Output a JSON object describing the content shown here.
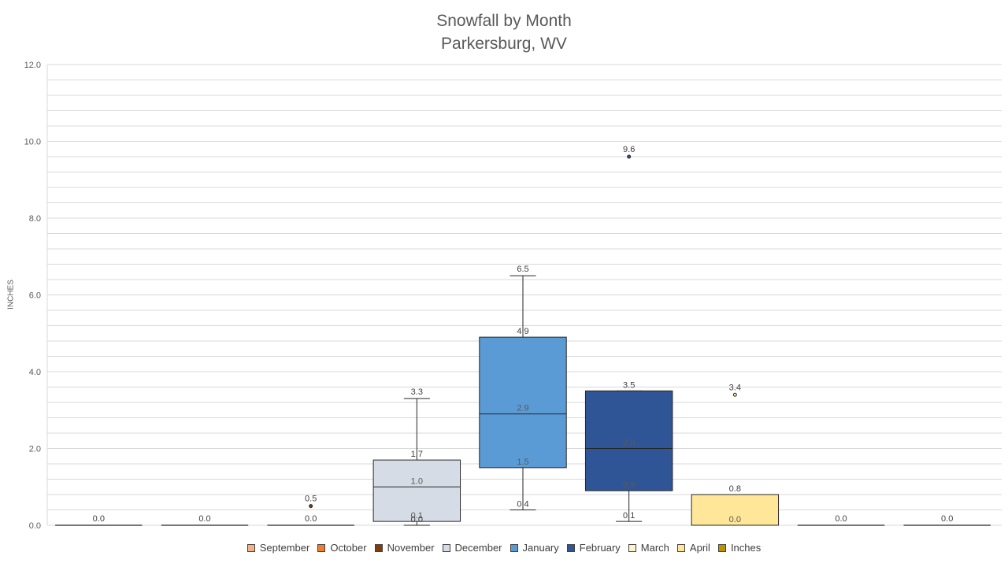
{
  "chart_data": {
    "type": "boxplot",
    "title": "Snowfall by Month",
    "subtitle": "Parkersburg, WV",
    "ylabel": "INCHES",
    "ylim": [
      0,
      12
    ],
    "yticks": [
      "0.0",
      "2.0",
      "4.0",
      "6.0",
      "8.0",
      "10.0",
      "12.0"
    ],
    "grid": true,
    "legend_position": "bottom",
    "legend": [
      "September",
      "October",
      "November",
      "December",
      "January",
      "February",
      "March",
      "April",
      "Inches"
    ],
    "legend_colors": [
      "#F4B183",
      "#ED7D31",
      "#843C0C",
      "#D6DCE5",
      "#5B9BD5",
      "#2F5597",
      "#FFF2CC",
      "#FFE699",
      "#BF9000"
    ],
    "series": [
      {
        "box": null,
        "points": [
          {
            "value": 0.0,
            "label": "0.0"
          }
        ],
        "fill": "#F4B183"
      },
      {
        "box": null,
        "points": [
          {
            "value": 0.0,
            "label": "0.0"
          }
        ],
        "fill": "#ED7D31"
      },
      {
        "box": null,
        "points": [
          {
            "value": 0.0,
            "label": "0.0"
          },
          {
            "value": 0.5,
            "label": "0.5"
          }
        ],
        "fill": "#843C0C"
      },
      {
        "box": {
          "min": 0.0,
          "q1": 0.1,
          "median": 1.0,
          "q3": 1.7,
          "max": 3.3
        },
        "labels": {
          "min": "0.0",
          "q1": "0.1",
          "median": "1.0",
          "q3": "1.7",
          "max": "3.3"
        },
        "points": [],
        "fill": "#D6DCE5"
      },
      {
        "box": {
          "min": 0.4,
          "q1": 1.5,
          "median": 2.9,
          "q3": 4.9,
          "max": 6.5
        },
        "labels": {
          "min": "0.4",
          "q1": "1.5",
          "median": "2.9",
          "q3": "4.9",
          "max": "6.5"
        },
        "points": [],
        "fill": "#5B9BD5"
      },
      {
        "box": {
          "min": 0.1,
          "q1": 0.9,
          "median": 2.0,
          "q3": 3.5,
          "max": 3.5
        },
        "labels": {
          "min": "0.1",
          "q1": "0.9",
          "median": "2.0",
          "q3": "3.5",
          "max": ""
        },
        "points": [
          {
            "value": 9.6,
            "label": "9.6"
          }
        ],
        "fill": "#2F5597"
      },
      {
        "box": {
          "min": 0.0,
          "q1": 0.0,
          "median": 0.0,
          "q3": 0.8,
          "max": 0.8
        },
        "labels": {
          "min": "",
          "q1": "0.0",
          "median": "",
          "q3": "0.8",
          "max": ""
        },
        "points": [
          {
            "value": 3.4,
            "label": "3.4"
          }
        ],
        "fill": "#FFE699"
      },
      {
        "box": null,
        "points": [
          {
            "value": 0.0,
            "label": "0.0"
          }
        ],
        "fill": "#FFF2CC"
      },
      {
        "box": null,
        "points": [
          {
            "value": 0.0,
            "label": "0.0"
          }
        ],
        "fill": "#BF9000"
      }
    ]
  }
}
